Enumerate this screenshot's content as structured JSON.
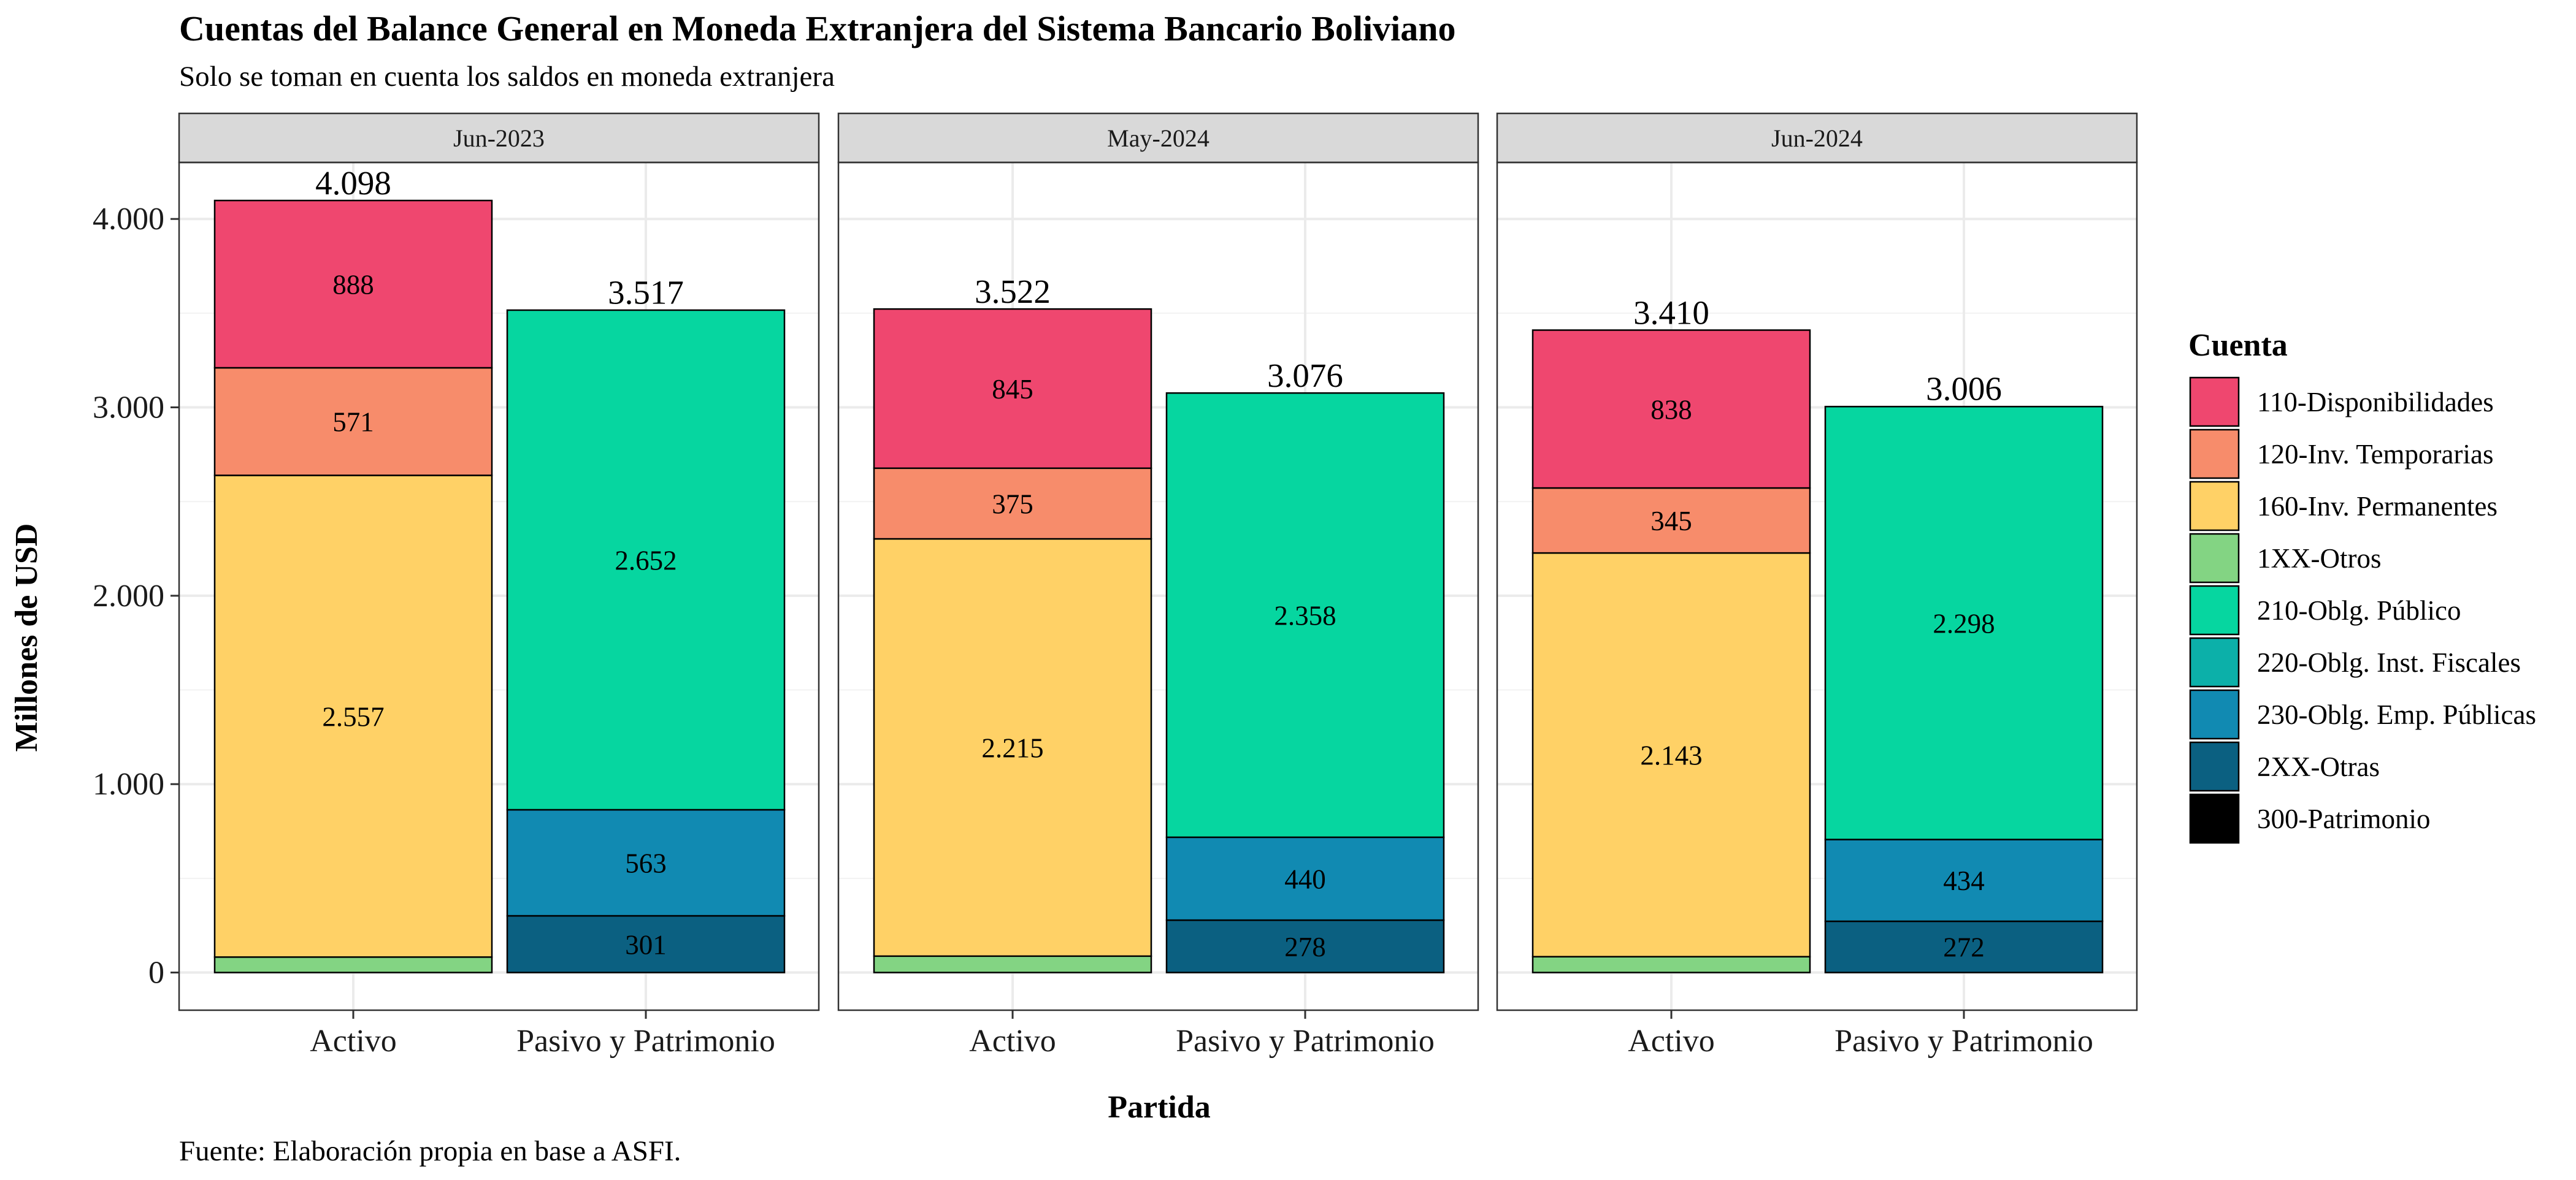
{
  "chart_data": {
    "type": "bar",
    "stacked": true,
    "faceted": true,
    "title": "Cuentas del Balance General en Moneda Extranjera del Sistema Bancario Boliviano",
    "subtitle": "Solo se toman en cuenta los saldos en moneda extranjera",
    "caption": "Fuente: Elaboración propia en base a ASFI.",
    "xlabel": "Partida",
    "ylabel": "Millones de USD",
    "ylim": [
      -200,
      4300
    ],
    "yticks": [
      0,
      1000,
      2000,
      3000,
      4000
    ],
    "ytick_labels": [
      "0",
      "1.000",
      "2.000",
      "3.000",
      "4.000"
    ],
    "grid": true,
    "legend_placement": "right",
    "legend_title": "Cuenta",
    "categories": [
      "Activo",
      "Pasivo y Patrimonio"
    ],
    "legend": [
      {
        "name": "110-Disponibilidades",
        "color": "#EF476F"
      },
      {
        "name": "120-Inv. Temporarias",
        "color": "#F78C6B"
      },
      {
        "name": "160-Inv. Permanentes",
        "color": "#FFD166"
      },
      {
        "name": "1XX-Otros",
        "color": "#83D483"
      },
      {
        "name": "210-Oblg. Público",
        "color": "#06D6A0"
      },
      {
        "name": "220-Oblg. Inst. Fiscales",
        "color": "#0CB0A9"
      },
      {
        "name": "230-Oblg. Emp. Públicas",
        "color": "#118AB2"
      },
      {
        "name": "2XX-Otras",
        "color": "#0B6081"
      },
      {
        "name": "300-Patrimonio",
        "color": "#000000"
      }
    ],
    "facets": [
      {
        "label": "Jun-2023",
        "bars": [
          {
            "category": "Activo",
            "total": 4098,
            "total_label": "4.098",
            "segments": [
              {
                "name": "1XX-Otros",
                "value": 82,
                "label": ""
              },
              {
                "name": "160-Inv. Permanentes",
                "value": 2557,
                "label": "2.557"
              },
              {
                "name": "120-Inv. Temporarias",
                "value": 571,
                "label": "571"
              },
              {
                "name": "110-Disponibilidades",
                "value": 888,
                "label": "888"
              }
            ]
          },
          {
            "category": "Pasivo y Patrimonio",
            "total": 3517,
            "total_label": "3.517",
            "segments": [
              {
                "name": "2XX-Otras",
                "value": 301,
                "label": "301"
              },
              {
                "name": "230-Oblg. Emp. Públicas",
                "value": 563,
                "label": "563"
              },
              {
                "name": "210-Oblg. Público",
                "value": 2652,
                "label": "2.652"
              }
            ]
          }
        ]
      },
      {
        "label": "May-2024",
        "bars": [
          {
            "category": "Activo",
            "total": 3522,
            "total_label": "3.522",
            "segments": [
              {
                "name": "1XX-Otros",
                "value": 87,
                "label": ""
              },
              {
                "name": "160-Inv. Permanentes",
                "value": 2215,
                "label": "2.215"
              },
              {
                "name": "120-Inv. Temporarias",
                "value": 375,
                "label": "375"
              },
              {
                "name": "110-Disponibilidades",
                "value": 845,
                "label": "845"
              }
            ]
          },
          {
            "category": "Pasivo y Patrimonio",
            "total": 3076,
            "total_label": "3.076",
            "segments": [
              {
                "name": "2XX-Otras",
                "value": 278,
                "label": "278"
              },
              {
                "name": "230-Oblg. Emp. Públicas",
                "value": 440,
                "label": "440"
              },
              {
                "name": "210-Oblg. Público",
                "value": 2358,
                "label": "2.358"
              }
            ]
          }
        ]
      },
      {
        "label": "Jun-2024",
        "bars": [
          {
            "category": "Activo",
            "total": 3410,
            "total_label": "3.410",
            "segments": [
              {
                "name": "1XX-Otros",
                "value": 84,
                "label": ""
              },
              {
                "name": "160-Inv. Permanentes",
                "value": 2143,
                "label": "2.143"
              },
              {
                "name": "120-Inv. Temporarias",
                "value": 345,
                "label": "345"
              },
              {
                "name": "110-Disponibilidades",
                "value": 838,
                "label": "838"
              }
            ]
          },
          {
            "category": "Pasivo y Patrimonio",
            "total": 3006,
            "total_label": "3.006",
            "segments": [
              {
                "name": "2XX-Otras",
                "value": 272,
                "label": "272"
              },
              {
                "name": "230-Oblg. Emp. Públicas",
                "value": 434,
                "label": "434"
              },
              {
                "name": "210-Oblg. Público",
                "value": 2298,
                "label": "2.298"
              }
            ]
          }
        ]
      }
    ]
  }
}
